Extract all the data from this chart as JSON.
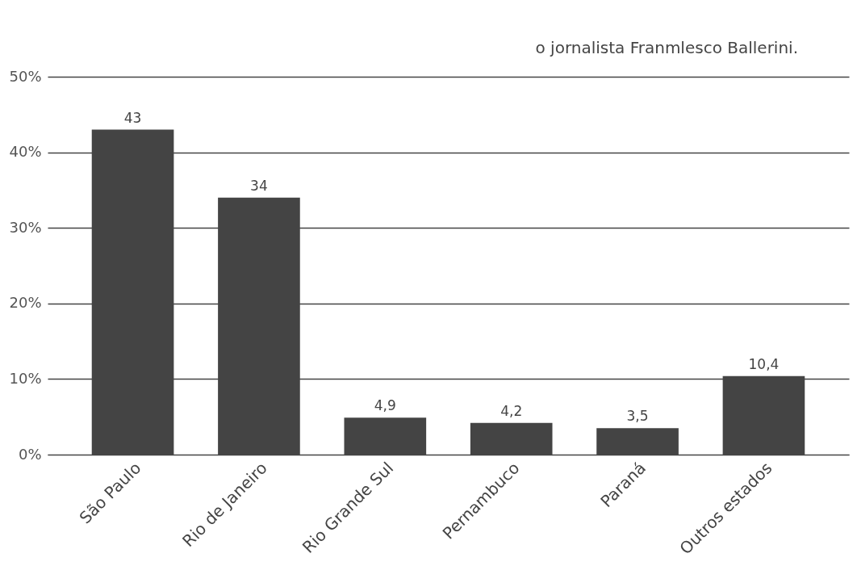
{
  "chart_data": {
    "type": "bar",
    "categories": [
      "São Paulo",
      "Rio de Janeiro",
      "Rio Grande Sul",
      "Pernambuco",
      "Paraná",
      "Outros estados"
    ],
    "values": [
      43,
      34,
      4.9,
      4.2,
      3.5,
      10.4
    ],
    "value_labels": [
      "43",
      "34",
      "4,9",
      "4,2",
      "3,5",
      "10,4"
    ],
    "color": "#444444",
    "ylim": [
      0,
      50
    ],
    "yticks": [
      {
        "value": 0,
        "label": "0%"
      },
      {
        "value": 10,
        "label": "10%"
      },
      {
        "value": 20,
        "label": "20%"
      },
      {
        "value": 30,
        "label": "30%"
      },
      {
        "value": 40,
        "label": "40%"
      },
      {
        "value": 50,
        "label": "50%"
      }
    ],
    "grid": "y",
    "annotations": [
      "o jornalista Franmlesco Ballerini."
    ]
  }
}
